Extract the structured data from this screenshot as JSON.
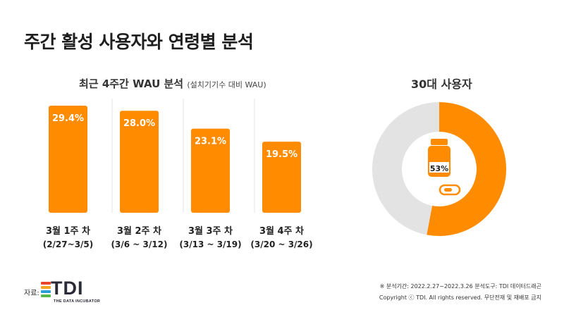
{
  "title": "주간 활성 사용자와 연령별 분석",
  "left_panel": {
    "subtitle": "최근 4주간 WAU 분석",
    "subtitle_note": "(설치기기수 대비 WAU)"
  },
  "right_panel": {
    "subtitle": "30대 사용자"
  },
  "chart_data": [
    {
      "type": "bar",
      "title": "최근 4주간 WAU 분석",
      "categories": [
        "3월 1주 차",
        "3월 2주 차",
        "3월 3주 차",
        "3월 4주 차"
      ],
      "category_ranges": [
        "(2/27~3/5)",
        "(3/6 ~ 3/12)",
        "(3/13 ~ 3/19)",
        "(3/20 ~ 3/26)"
      ],
      "values": [
        29.4,
        28.0,
        23.1,
        19.5
      ],
      "value_labels": [
        "29.4%",
        "28.0%",
        "23.1%",
        "19.5%"
      ],
      "ylim": [
        0,
        29.4
      ],
      "bar_color": "#ff8c00",
      "grid": false
    },
    {
      "type": "pie",
      "title": "30대 사용자",
      "values": [
        53,
        47
      ],
      "center_label": "53%",
      "colors": [
        "#ff8c00",
        "#e3e3e3"
      ],
      "icon": "pill-bottle-icon"
    }
  ],
  "footer": {
    "source_label": "자료:",
    "logo_text": "TDI",
    "logo_tagline": "THE DATA INCUBATOR",
    "logo_colors": [
      "#e8452c",
      "#f4a622",
      "#2a9fd6",
      "#55b848"
    ],
    "analysis_note": "※ 분석기간: 2022.2.27~2022.3.26 분석도구: TDI 데이터드래곤",
    "copyright": "Copyright ⓒ TDI. All rights reserved. 무단전재 및 재배포 금지"
  }
}
